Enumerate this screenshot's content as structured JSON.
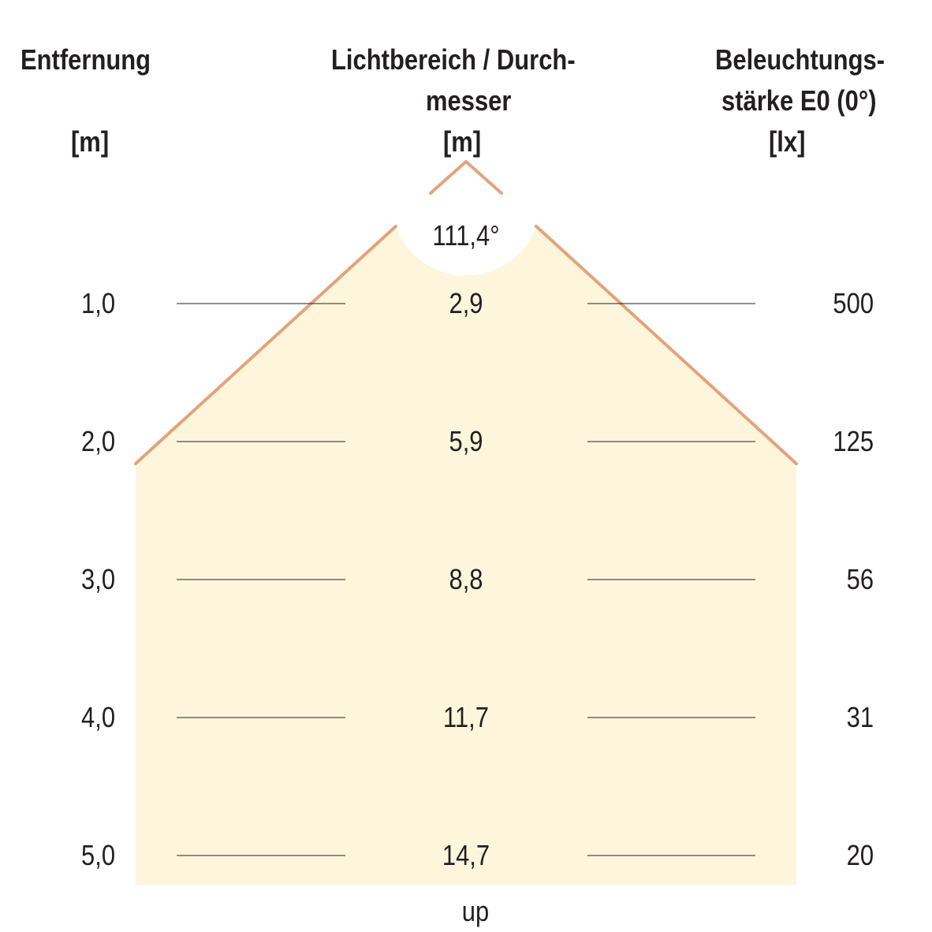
{
  "headers": {
    "distance_label": "Entfernung",
    "distance_unit": "[m]",
    "diameter_label_1": "Lichtbereich / Durch-",
    "diameter_label_2": "messer",
    "diameter_unit": "[m]",
    "illuminance_label_1": "Beleuchtungs-",
    "illuminance_label_2": "stärke E0 (0°)",
    "illuminance_unit": "[lx]"
  },
  "beam_angle": "111,4°",
  "footer": "up",
  "colors": {
    "cone_fill": "#fdf6dd",
    "cone_edge": "#e3a37a",
    "row_line": "#231f20",
    "text": "#231f20"
  },
  "chart_data": {
    "type": "table",
    "rows": [
      {
        "distance": "1,0",
        "diameter": "2,9",
        "illuminance": "500"
      },
      {
        "distance": "2,0",
        "diameter": "5,9",
        "illuminance": "125"
      },
      {
        "distance": "3,0",
        "diameter": "8,8",
        "illuminance": "56"
      },
      {
        "distance": "4,0",
        "diameter": "11,7",
        "illuminance": "31"
      },
      {
        "distance": "5,0",
        "diameter": "14,7",
        "illuminance": "20"
      }
    ]
  }
}
